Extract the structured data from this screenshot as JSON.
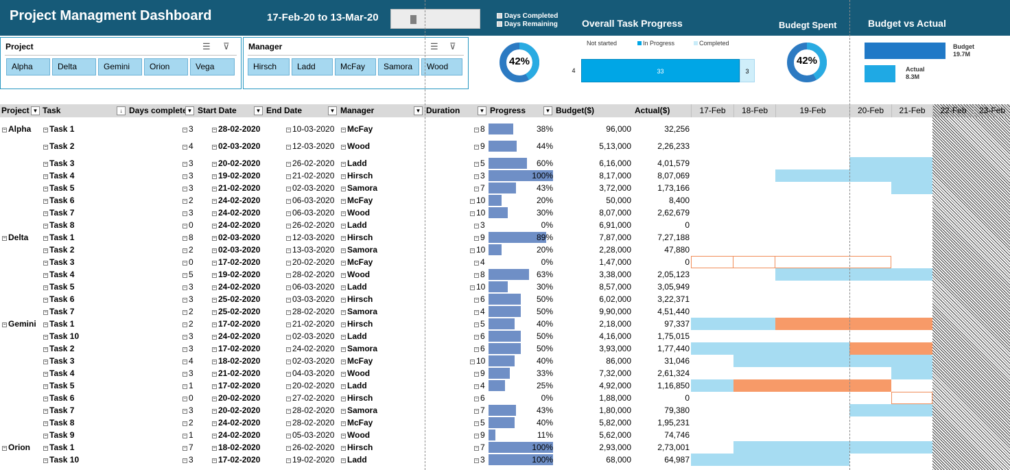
{
  "header": {
    "title": "Project Managment Dashboard",
    "date_range": "17-Feb-20 to 13-Mar-20",
    "legend": [
      "Days Completed",
      "Days Remaining"
    ],
    "overall_title": "Overall Task Progress",
    "budget_spent_title": "Budegt Spent",
    "bva_title": "Budget vs Actual"
  },
  "slicers": {
    "project": {
      "title": "Project",
      "items": [
        "Alpha",
        "Delta",
        "Gemini",
        "Orion",
        "Vega"
      ]
    },
    "manager": {
      "title": "Manager",
      "items": [
        "Hirsch",
        "Ladd",
        "McFay",
        "Samora",
        "Wood"
      ]
    }
  },
  "days_donut": {
    "label": "42%",
    "fraction": 0.42
  },
  "budget_donut": {
    "label": "42%",
    "fraction": 0.42
  },
  "overall": {
    "legend": [
      "Not started",
      "In Progress",
      "Completed"
    ],
    "not_started": "4",
    "in_progress": "33",
    "completed": "3"
  },
  "bva": {
    "budget_label": "Budget",
    "budget_value": "19.7M",
    "actual_label": "Actual",
    "actual_value": "8.3M",
    "budget_num": 19.7,
    "actual_num": 8.3
  },
  "columns": [
    "Project",
    "Task",
    "Days complete",
    "Start Date",
    "End Date",
    "Manager",
    "Duration",
    "Progress",
    "Budget($)",
    "Actual($)"
  ],
  "days": [
    "17-Feb",
    "18-Feb",
    "19-Feb",
    "20-Feb",
    "21-Feb",
    "22-Feb",
    "23-Feb"
  ],
  "colors": {
    "header": "#165a78",
    "done": "#a6dcf2",
    "remaining": "#f79a68",
    "progress": "#6f8fc6",
    "slicer_chip": "#a6d8f0"
  },
  "rows": [
    {
      "project": "Alpha",
      "task": "Task 1",
      "days": "3",
      "start": "28-02-2020",
      "end": "10-03-2020",
      "manager": "McFay",
      "duration": "8",
      "progress": "38%",
      "pct": 38,
      "budget": "96,000",
      "actual": "32,256"
    },
    {
      "project": "",
      "task": "Task 2",
      "days": "4",
      "start": "02-03-2020",
      "end": "12-03-2020",
      "manager": "Wood",
      "duration": "9",
      "progress": "44%",
      "pct": 44,
      "budget": "5,13,000",
      "actual": "2,26,233"
    },
    {
      "project": "",
      "task": "Task 3",
      "days": "3",
      "start": "20-02-2020",
      "end": "26-02-2020",
      "manager": "Ladd",
      "duration": "5",
      "progress": "60%",
      "pct": 60,
      "budget": "6,16,000",
      "actual": "4,01,579"
    },
    {
      "project": "",
      "task": "Task 4",
      "days": "3",
      "start": "19-02-2020",
      "end": "21-02-2020",
      "manager": "Hirsch",
      "duration": "3",
      "progress": "100%",
      "pct": 100,
      "budget": "8,17,000",
      "actual": "8,07,069"
    },
    {
      "project": "",
      "task": "Task 5",
      "days": "3",
      "start": "21-02-2020",
      "end": "02-03-2020",
      "manager": "Samora",
      "duration": "7",
      "progress": "43%",
      "pct": 43,
      "budget": "3,72,000",
      "actual": "1,73,166"
    },
    {
      "project": "",
      "task": "Task 6",
      "days": "2",
      "start": "24-02-2020",
      "end": "06-03-2020",
      "manager": "McFay",
      "duration": "10",
      "progress": "20%",
      "pct": 20,
      "budget": "50,000",
      "actual": "8,400"
    },
    {
      "project": "",
      "task": "Task 7",
      "days": "3",
      "start": "24-02-2020",
      "end": "06-03-2020",
      "manager": "Wood",
      "duration": "10",
      "progress": "30%",
      "pct": 30,
      "budget": "8,07,000",
      "actual": "2,62,679"
    },
    {
      "project": "",
      "task": "Task 8",
      "days": "0",
      "start": "24-02-2020",
      "end": "26-02-2020",
      "manager": "Ladd",
      "duration": "3",
      "progress": "0%",
      "pct": 0,
      "budget": "6,91,000",
      "actual": "0"
    },
    {
      "project": "Delta",
      "task": "Task 1",
      "days": "8",
      "start": "02-03-2020",
      "end": "12-03-2020",
      "manager": "Hirsch",
      "duration": "9",
      "progress": "89%",
      "pct": 89,
      "budget": "7,87,000",
      "actual": "7,27,188"
    },
    {
      "project": "",
      "task": "Task 2",
      "days": "2",
      "start": "02-03-2020",
      "end": "13-03-2020",
      "manager": "Samora",
      "duration": "10",
      "progress": "20%",
      "pct": 20,
      "budget": "2,28,000",
      "actual": "47,880"
    },
    {
      "project": "",
      "task": "Task 3",
      "days": "0",
      "start": "17-02-2020",
      "end": "20-02-2020",
      "manager": "McFay",
      "duration": "4",
      "progress": "0%",
      "pct": 0,
      "budget": "1,47,000",
      "actual": "0"
    },
    {
      "project": "",
      "task": "Task 4",
      "days": "5",
      "start": "19-02-2020",
      "end": "28-02-2020",
      "manager": "Wood",
      "duration": "8",
      "progress": "63%",
      "pct": 63,
      "budget": "3,38,000",
      "actual": "2,05,123"
    },
    {
      "project": "",
      "task": "Task 5",
      "days": "3",
      "start": "24-02-2020",
      "end": "06-03-2020",
      "manager": "Ladd",
      "duration": "10",
      "progress": "30%",
      "pct": 30,
      "budget": "8,57,000",
      "actual": "3,05,949"
    },
    {
      "project": "",
      "task": "Task 6",
      "days": "3",
      "start": "25-02-2020",
      "end": "03-03-2020",
      "manager": "Hirsch",
      "duration": "6",
      "progress": "50%",
      "pct": 50,
      "budget": "6,02,000",
      "actual": "3,22,371"
    },
    {
      "project": "",
      "task": "Task 7",
      "days": "2",
      "start": "25-02-2020",
      "end": "28-02-2020",
      "manager": "Samora",
      "duration": "4",
      "progress": "50%",
      "pct": 50,
      "budget": "9,90,000",
      "actual": "4,51,440"
    },
    {
      "project": "Gemini",
      "task": "Task 1",
      "days": "2",
      "start": "17-02-2020",
      "end": "21-02-2020",
      "manager": "Hirsch",
      "duration": "5",
      "progress": "40%",
      "pct": 40,
      "budget": "2,18,000",
      "actual": "97,337"
    },
    {
      "project": "",
      "task": "Task 10",
      "days": "3",
      "start": "24-02-2020",
      "end": "02-03-2020",
      "manager": "Ladd",
      "duration": "6",
      "progress": "50%",
      "pct": 50,
      "budget": "4,16,000",
      "actual": "1,75,015"
    },
    {
      "project": "",
      "task": "Task 2",
      "days": "3",
      "start": "17-02-2020",
      "end": "24-02-2020",
      "manager": "Samora",
      "duration": "6",
      "progress": "50%",
      "pct": 50,
      "budget": "3,93,000",
      "actual": "1,77,440"
    },
    {
      "project": "",
      "task": "Task 3",
      "days": "4",
      "start": "18-02-2020",
      "end": "02-03-2020",
      "manager": "McFay",
      "duration": "10",
      "progress": "40%",
      "pct": 40,
      "budget": "86,000",
      "actual": "31,046"
    },
    {
      "project": "",
      "task": "Task 4",
      "days": "3",
      "start": "21-02-2020",
      "end": "04-03-2020",
      "manager": "Wood",
      "duration": "9",
      "progress": "33%",
      "pct": 33,
      "budget": "7,32,000",
      "actual": "2,61,324"
    },
    {
      "project": "",
      "task": "Task 5",
      "days": "1",
      "start": "17-02-2020",
      "end": "20-02-2020",
      "manager": "Ladd",
      "duration": "4",
      "progress": "25%",
      "pct": 25,
      "budget": "4,92,000",
      "actual": "1,16,850"
    },
    {
      "project": "",
      "task": "Task 6",
      "days": "0",
      "start": "20-02-2020",
      "end": "27-02-2020",
      "manager": "Hirsch",
      "duration": "6",
      "progress": "0%",
      "pct": 0,
      "budget": "1,88,000",
      "actual": "0"
    },
    {
      "project": "",
      "task": "Task 7",
      "days": "3",
      "start": "20-02-2020",
      "end": "28-02-2020",
      "manager": "Samora",
      "duration": "7",
      "progress": "43%",
      "pct": 43,
      "budget": "1,80,000",
      "actual": "79,380"
    },
    {
      "project": "",
      "task": "Task 8",
      "days": "2",
      "start": "24-02-2020",
      "end": "28-02-2020",
      "manager": "McFay",
      "duration": "5",
      "progress": "40%",
      "pct": 40,
      "budget": "5,82,000",
      "actual": "1,95,231"
    },
    {
      "project": "",
      "task": "Task 9",
      "days": "1",
      "start": "24-02-2020",
      "end": "05-03-2020",
      "manager": "Wood",
      "duration": "9",
      "progress": "11%",
      "pct": 11,
      "budget": "5,62,000",
      "actual": "74,746"
    },
    {
      "project": "Orion",
      "task": "Task 1",
      "days": "7",
      "start": "18-02-2020",
      "end": "26-02-2020",
      "manager": "Hirsch",
      "duration": "7",
      "progress": "100%",
      "pct": 100,
      "budget": "2,93,000",
      "actual": "2,73,001"
    },
    {
      "project": "",
      "task": "Task 10",
      "days": "3",
      "start": "17-02-2020",
      "end": "19-02-2020",
      "manager": "Ladd",
      "duration": "3",
      "progress": "100%",
      "pct": 100,
      "budget": "68,000",
      "actual": "64,987"
    }
  ]
}
